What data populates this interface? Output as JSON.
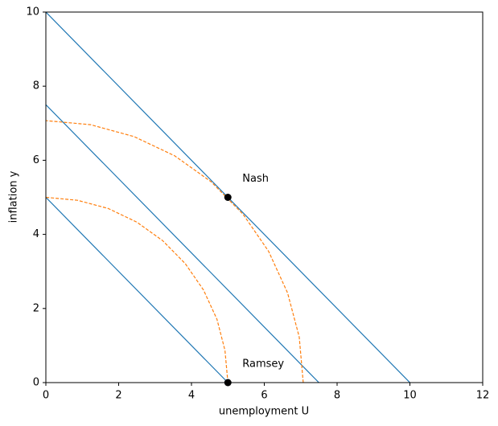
{
  "chart_data": {
    "type": "line",
    "xlabel": "unemployment U",
    "ylabel": "inflation y",
    "xlim": [
      0,
      12
    ],
    "xticks": [
      0,
      2,
      4,
      6,
      8,
      10,
      12
    ],
    "ylim": [
      0,
      10
    ],
    "yticks": [
      0,
      2,
      4,
      6,
      8,
      10
    ],
    "series": [
      {
        "color": "#1f77b4",
        "linestyle": "solid",
        "x": [
          0,
          10
        ],
        "values": [
          10,
          0
        ]
      },
      {
        "color": "#1f77b4",
        "linestyle": "solid",
        "x": [
          0,
          7.5
        ],
        "values": [
          7.5,
          0
        ]
      },
      {
        "color": "#1f77b4",
        "linestyle": "solid",
        "x": [
          0,
          5
        ],
        "values": [
          5,
          0
        ]
      },
      {
        "color": "#ff7f0e",
        "linestyle": "dashed",
        "x": [
          7.07,
          6.96,
          6.64,
          6.12,
          5.42,
          4.54,
          3.54,
          2.42,
          1.23,
          0
        ],
        "values": [
          0,
          1.23,
          2.42,
          3.54,
          4.54,
          5.42,
          6.12,
          6.64,
          6.96,
          7.07
        ]
      },
      {
        "color": "#ff7f0e",
        "linestyle": "dashed",
        "x": [
          5,
          4.92,
          4.7,
          4.33,
          3.83,
          3.21,
          2.5,
          1.71,
          0.87,
          0
        ],
        "values": [
          0,
          0.87,
          1.71,
          2.5,
          3.21,
          3.83,
          4.33,
          4.7,
          4.92,
          5
        ]
      }
    ],
    "points": [
      {
        "x": 5,
        "y": 5,
        "label": "Nash",
        "color": "#000000"
      },
      {
        "x": 5,
        "y": 0,
        "label": "Ramsey",
        "color": "#000000"
      }
    ]
  }
}
